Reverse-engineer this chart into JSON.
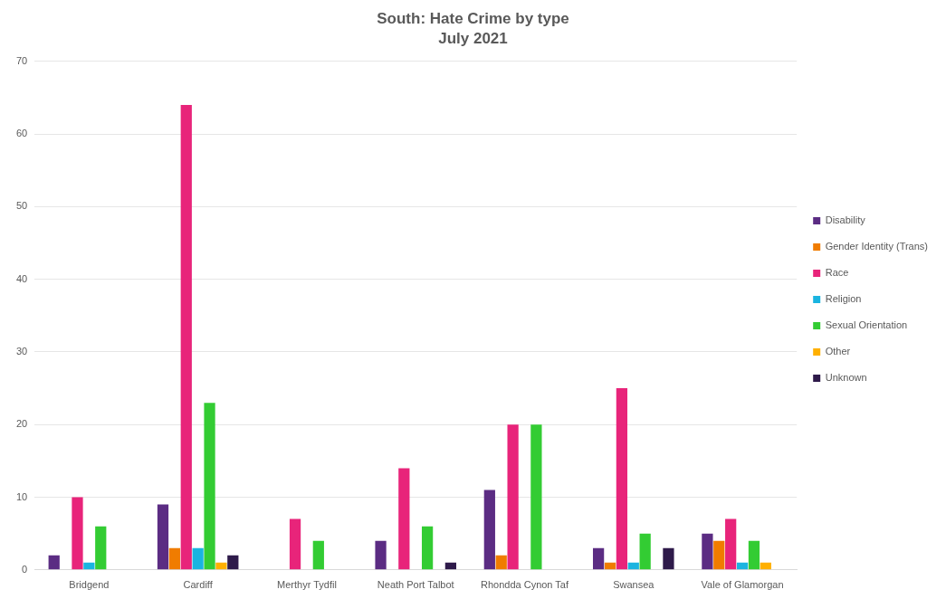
{
  "chart_data": {
    "type": "bar",
    "title": "South: Hate Crime by type",
    "subtitle": "July 2021",
    "categories": [
      "Bridgend",
      "Cardiff",
      "Merthyr Tydfil",
      "Neath Port Talbot",
      "Rhondda Cynon Taf",
      "Swansea",
      "Vale of Glamorgan"
    ],
    "series": [
      {
        "name": "Disability",
        "color": "#5b2c83",
        "values": [
          2,
          9,
          0,
          4,
          11,
          3,
          5
        ]
      },
      {
        "name": "Gender Identity (Trans)",
        "color": "#f07c00",
        "values": [
          0,
          3,
          0,
          0,
          2,
          1,
          4
        ]
      },
      {
        "name": "Race",
        "color": "#e8247a",
        "values": [
          10,
          64,
          7,
          14,
          20,
          25,
          7
        ]
      },
      {
        "name": "Religion",
        "color": "#1ab4e0",
        "values": [
          1,
          3,
          0,
          0,
          0,
          1,
          1
        ]
      },
      {
        "name": "Sexual Orientation",
        "color": "#33cc33",
        "values": [
          6,
          23,
          4,
          6,
          20,
          5,
          4
        ]
      },
      {
        "name": "Other",
        "color": "#ffb000",
        "values": [
          0,
          1,
          0,
          0,
          0,
          0,
          1
        ]
      },
      {
        "name": "Unknown",
        "color": "#2e1a4a",
        "values": [
          0,
          2,
          0,
          1,
          0,
          3,
          0
        ]
      }
    ],
    "ylim": [
      0,
      70
    ],
    "yticks": [
      0,
      10,
      20,
      30,
      40,
      50,
      60,
      70
    ],
    "grid": "y",
    "legend": "right"
  }
}
